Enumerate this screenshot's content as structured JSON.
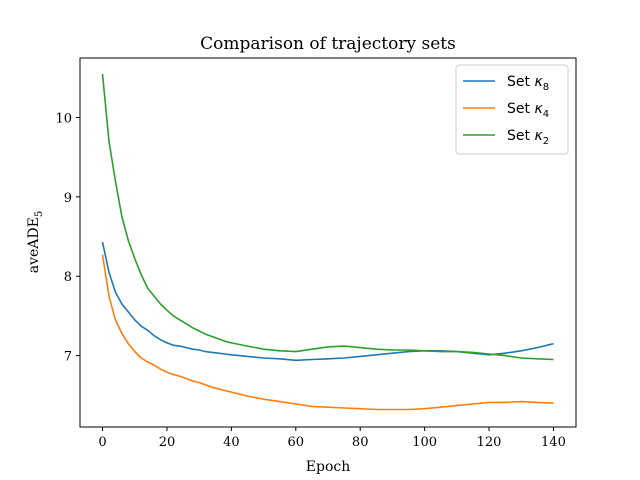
{
  "chart_data": {
    "type": "line",
    "title": "Comparison of trajectory sets",
    "xlabel": "Epoch",
    "ylabel_main": "aveADE",
    "ylabel_sub": "5",
    "xlim": [
      -7,
      147
    ],
    "ylim": [
      6.1,
      10.75
    ],
    "xticks": [
      0,
      20,
      40,
      60,
      80,
      100,
      120,
      140
    ],
    "yticks": [
      7,
      8,
      9,
      10
    ],
    "legend_position": "upper right",
    "grid": false,
    "series": [
      {
        "name": "Set κ8",
        "name_main": "Set ",
        "name_var": "κ",
        "name_sub": "8",
        "color": "#1f77b4",
        "x": [
          0,
          2,
          4,
          6,
          8,
          10,
          12,
          14,
          16,
          18,
          20,
          22,
          24,
          26,
          28,
          30,
          32,
          34,
          36,
          38,
          40,
          45,
          50,
          55,
          60,
          65,
          70,
          75,
          80,
          85,
          90,
          95,
          100,
          105,
          110,
          115,
          120,
          125,
          130,
          135,
          140
        ],
        "y": [
          8.43,
          8.05,
          7.8,
          7.65,
          7.55,
          7.45,
          7.37,
          7.32,
          7.25,
          7.2,
          7.16,
          7.13,
          7.12,
          7.1,
          7.08,
          7.07,
          7.05,
          7.04,
          7.03,
          7.02,
          7.01,
          6.99,
          6.97,
          6.96,
          6.94,
          6.95,
          6.96,
          6.97,
          6.99,
          7.01,
          7.03,
          7.05,
          7.06,
          7.06,
          7.05,
          7.03,
          7.01,
          7.03,
          7.06,
          7.1,
          7.15
        ]
      },
      {
        "name": "Set κ4",
        "name_main": "Set ",
        "name_var": "κ",
        "name_sub": "4",
        "color": "#ff7f0e",
        "x": [
          0,
          2,
          4,
          6,
          8,
          10,
          12,
          14,
          16,
          18,
          20,
          22,
          24,
          26,
          28,
          30,
          32,
          34,
          36,
          38,
          40,
          45,
          50,
          55,
          60,
          65,
          70,
          75,
          80,
          85,
          90,
          95,
          100,
          105,
          110,
          115,
          120,
          125,
          130,
          135,
          140
        ],
        "y": [
          8.27,
          7.75,
          7.45,
          7.28,
          7.15,
          7.05,
          6.97,
          6.92,
          6.88,
          6.83,
          6.79,
          6.76,
          6.74,
          6.71,
          6.68,
          6.66,
          6.63,
          6.6,
          6.58,
          6.56,
          6.54,
          6.49,
          6.45,
          6.42,
          6.39,
          6.36,
          6.35,
          6.34,
          6.33,
          6.32,
          6.32,
          6.32,
          6.33,
          6.35,
          6.37,
          6.39,
          6.41,
          6.41,
          6.42,
          6.41,
          6.4
        ]
      },
      {
        "name": "Set κ2",
        "name_main": "Set ",
        "name_var": "κ",
        "name_sub": "2",
        "color": "#2ca02c",
        "x": [
          0,
          2,
          4,
          6,
          8,
          10,
          12,
          14,
          16,
          18,
          20,
          22,
          24,
          26,
          28,
          30,
          32,
          34,
          36,
          38,
          40,
          45,
          50,
          55,
          60,
          65,
          70,
          75,
          80,
          85,
          90,
          95,
          100,
          105,
          110,
          115,
          120,
          125,
          130,
          135,
          140
        ],
        "y": [
          10.55,
          9.7,
          9.2,
          8.75,
          8.45,
          8.22,
          8.02,
          7.85,
          7.75,
          7.65,
          7.57,
          7.5,
          7.45,
          7.4,
          7.35,
          7.31,
          7.27,
          7.24,
          7.21,
          7.18,
          7.16,
          7.12,
          7.08,
          7.06,
          7.05,
          7.08,
          7.11,
          7.12,
          7.1,
          7.08,
          7.07,
          7.07,
          7.06,
          7.05,
          7.05,
          7.04,
          7.02,
          7.0,
          6.97,
          6.96,
          6.95
        ]
      }
    ]
  }
}
